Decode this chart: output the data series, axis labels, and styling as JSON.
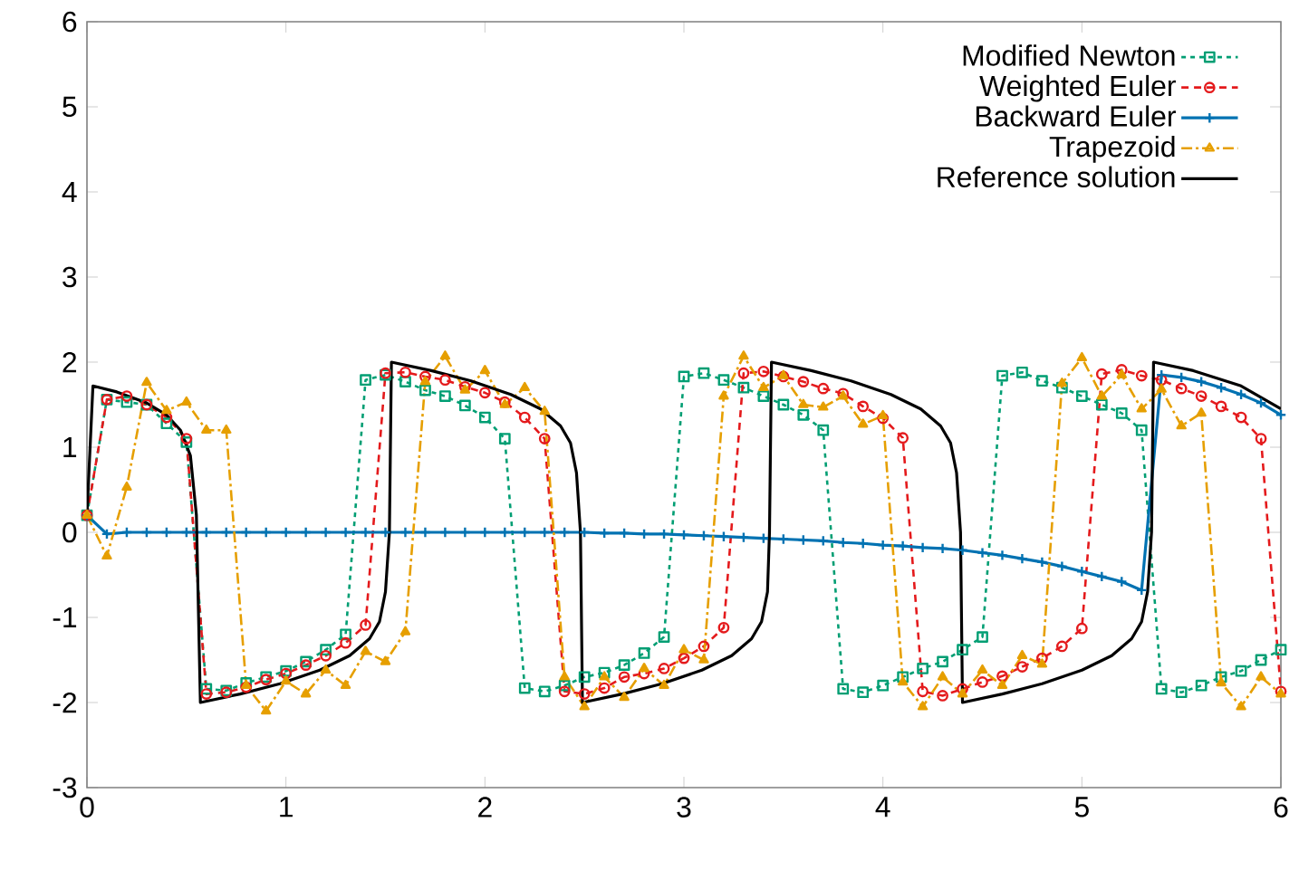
{
  "chart_data": {
    "type": "line",
    "xlim": [
      0,
      6
    ],
    "ylim": [
      -3,
      6
    ],
    "xticks": [
      0,
      1,
      2,
      3,
      4,
      5,
      6
    ],
    "yticks": [
      -3,
      -2,
      -1,
      0,
      1,
      2,
      3,
      4,
      5,
      6
    ],
    "legend": "top right",
    "grid": false,
    "x": [
      0,
      0.1,
      0.2,
      0.3,
      0.4,
      0.5,
      0.6,
      0.7,
      0.8,
      0.9,
      1.0,
      1.1,
      1.2,
      1.3,
      1.4,
      1.5,
      1.6,
      1.7,
      1.8,
      1.9,
      2.0,
      2.1,
      2.2,
      2.3,
      2.4,
      2.5,
      2.6,
      2.7,
      2.8,
      2.9,
      3.0,
      3.1,
      3.2,
      3.3,
      3.4,
      3.5,
      3.6,
      3.7,
      3.8,
      3.9,
      4.0,
      4.1,
      4.2,
      4.3,
      4.4,
      4.5,
      4.6,
      4.7,
      4.8,
      4.9,
      5.0,
      5.1,
      5.2,
      5.3,
      5.4,
      5.5,
      5.6,
      5.7,
      5.8,
      5.9,
      6.0
    ],
    "series": [
      {
        "name": "Modified Newton",
        "color": "#009e73",
        "marker": "square",
        "line_style": "dotted",
        "values": [
          0.2,
          1.56,
          1.53,
          1.5,
          1.28,
          1.06,
          -1.84,
          -1.86,
          -1.77,
          -1.7,
          -1.63,
          -1.52,
          -1.38,
          -1.2,
          1.79,
          1.85,
          1.77,
          1.67,
          1.6,
          1.49,
          1.35,
          1.1,
          -1.83,
          -1.87,
          -1.8,
          -1.7,
          -1.65,
          -1.56,
          -1.42,
          -1.23,
          1.83,
          1.87,
          1.79,
          1.7,
          1.6,
          1.5,
          1.38,
          1.2,
          -1.84,
          -1.88,
          -1.8,
          -1.7,
          -1.6,
          -1.52,
          -1.38,
          -1.23,
          1.84,
          1.88,
          1.78,
          1.7,
          1.6,
          1.5,
          1.4,
          1.2,
          -1.84,
          -1.88,
          -1.8,
          -1.7,
          -1.63,
          -1.5,
          -1.38
        ]
      },
      {
        "name": "Weighted Euler",
        "color": "#e41a1c",
        "marker": "circle",
        "line_style": "dashed",
        "values": [
          0.2,
          1.56,
          1.6,
          1.5,
          1.35,
          1.1,
          -1.9,
          -1.88,
          -1.82,
          -1.73,
          -1.66,
          -1.56,
          -1.45,
          -1.3,
          -1.09,
          1.87,
          1.88,
          1.83,
          1.79,
          1.71,
          1.64,
          1.53,
          1.35,
          1.1,
          -1.87,
          -1.9,
          -1.83,
          -1.7,
          -1.66,
          -1.6,
          -1.48,
          -1.34,
          -1.12,
          1.87,
          1.89,
          1.83,
          1.77,
          1.69,
          1.63,
          1.48,
          1.34,
          1.11,
          -1.87,
          -1.92,
          -1.84,
          -1.76,
          -1.69,
          -1.58,
          -1.48,
          -1.34,
          -1.13,
          1.86,
          1.91,
          1.84,
          1.79,
          1.69,
          1.6,
          1.48,
          1.35,
          1.1,
          -1.87
        ]
      },
      {
        "name": "Backward Euler",
        "color": "#0072b2",
        "marker": "cross",
        "line_style": "solid",
        "values": [
          0.2,
          -0.02,
          0,
          0,
          0,
          0,
          0,
          0,
          0,
          0,
          0,
          0,
          0,
          0,
          0,
          0,
          0,
          0,
          0,
          0,
          0,
          0,
          0,
          0,
          0,
          0,
          -0.01,
          -0.01,
          -0.02,
          -0.02,
          -0.03,
          -0.04,
          -0.05,
          -0.06,
          -0.07,
          -0.08,
          -0.09,
          -0.1,
          -0.12,
          -0.13,
          -0.15,
          -0.16,
          -0.18,
          -0.19,
          -0.21,
          -0.24,
          -0.27,
          -0.31,
          -0.35,
          -0.4,
          -0.46,
          -0.52,
          -0.58,
          -0.68,
          1.85,
          1.82,
          1.77,
          1.7,
          1.62,
          1.52,
          1.38
        ]
      },
      {
        "name": "Trapezoid",
        "color": "#e69f00",
        "marker": "triangle",
        "line_style": "dashdot",
        "values": [
          0.2,
          -0.28,
          0.53,
          1.76,
          1.43,
          1.53,
          1.2,
          1.2,
          -1.8,
          -2.1,
          -1.75,
          -1.9,
          -1.62,
          -1.8,
          -1.4,
          -1.52,
          -1.17,
          1.77,
          2.07,
          1.67,
          1.9,
          1.5,
          1.7,
          1.42,
          -1.7,
          -2.05,
          -1.7,
          -1.94,
          -1.6,
          -1.8,
          -1.38,
          -1.5,
          1.6,
          2.07,
          1.7,
          1.84,
          1.5,
          1.47,
          1.6,
          1.27,
          1.37,
          -1.76,
          -2.05,
          -1.7,
          -1.9,
          -1.62,
          -1.8,
          -1.45,
          -1.55,
          1.75,
          2.05,
          1.6,
          1.85,
          1.45,
          1.68,
          1.25,
          1.4,
          -1.77,
          -2.05,
          -1.7,
          -1.9
        ]
      },
      {
        "name": "Reference solution",
        "color": "#000000",
        "marker": "none",
        "line_style": "solid",
        "x": [
          0,
          0.03,
          0.15,
          0.3,
          0.4,
          0.47,
          0.52,
          0.55,
          0.57,
          0.77,
          0.97,
          1.17,
          1.32,
          1.42,
          1.47,
          1.5,
          1.52,
          1.53,
          1.73,
          1.93,
          2.13,
          2.28,
          2.38,
          2.43,
          2.46,
          2.48,
          2.49,
          2.69,
          2.89,
          3.09,
          3.24,
          3.34,
          3.39,
          3.42,
          3.43,
          3.44,
          3.64,
          3.84,
          4.04,
          4.19,
          4.29,
          4.34,
          4.37,
          4.39,
          4.4,
          4.6,
          4.8,
          5.0,
          5.15,
          5.25,
          5.3,
          5.33,
          5.35,
          5.36,
          5.56,
          5.8,
          6.0
        ],
        "values": [
          0.2,
          1.72,
          1.65,
          1.52,
          1.38,
          1.2,
          0.9,
          0.2,
          -2.0,
          -1.9,
          -1.78,
          -1.62,
          -1.45,
          -1.25,
          -1.05,
          -0.7,
          0.0,
          2.0,
          1.9,
          1.78,
          1.62,
          1.45,
          1.25,
          1.05,
          0.7,
          0.0,
          -2.0,
          -1.9,
          -1.78,
          -1.62,
          -1.45,
          -1.25,
          -1.05,
          -0.7,
          0.0,
          2.0,
          1.9,
          1.78,
          1.62,
          1.45,
          1.25,
          1.05,
          0.7,
          0.0,
          -2.0,
          -1.9,
          -1.78,
          -1.62,
          -1.45,
          -1.25,
          -1.05,
          -0.7,
          0.0,
          2.0,
          1.9,
          1.72,
          1.45
        ]
      }
    ]
  }
}
